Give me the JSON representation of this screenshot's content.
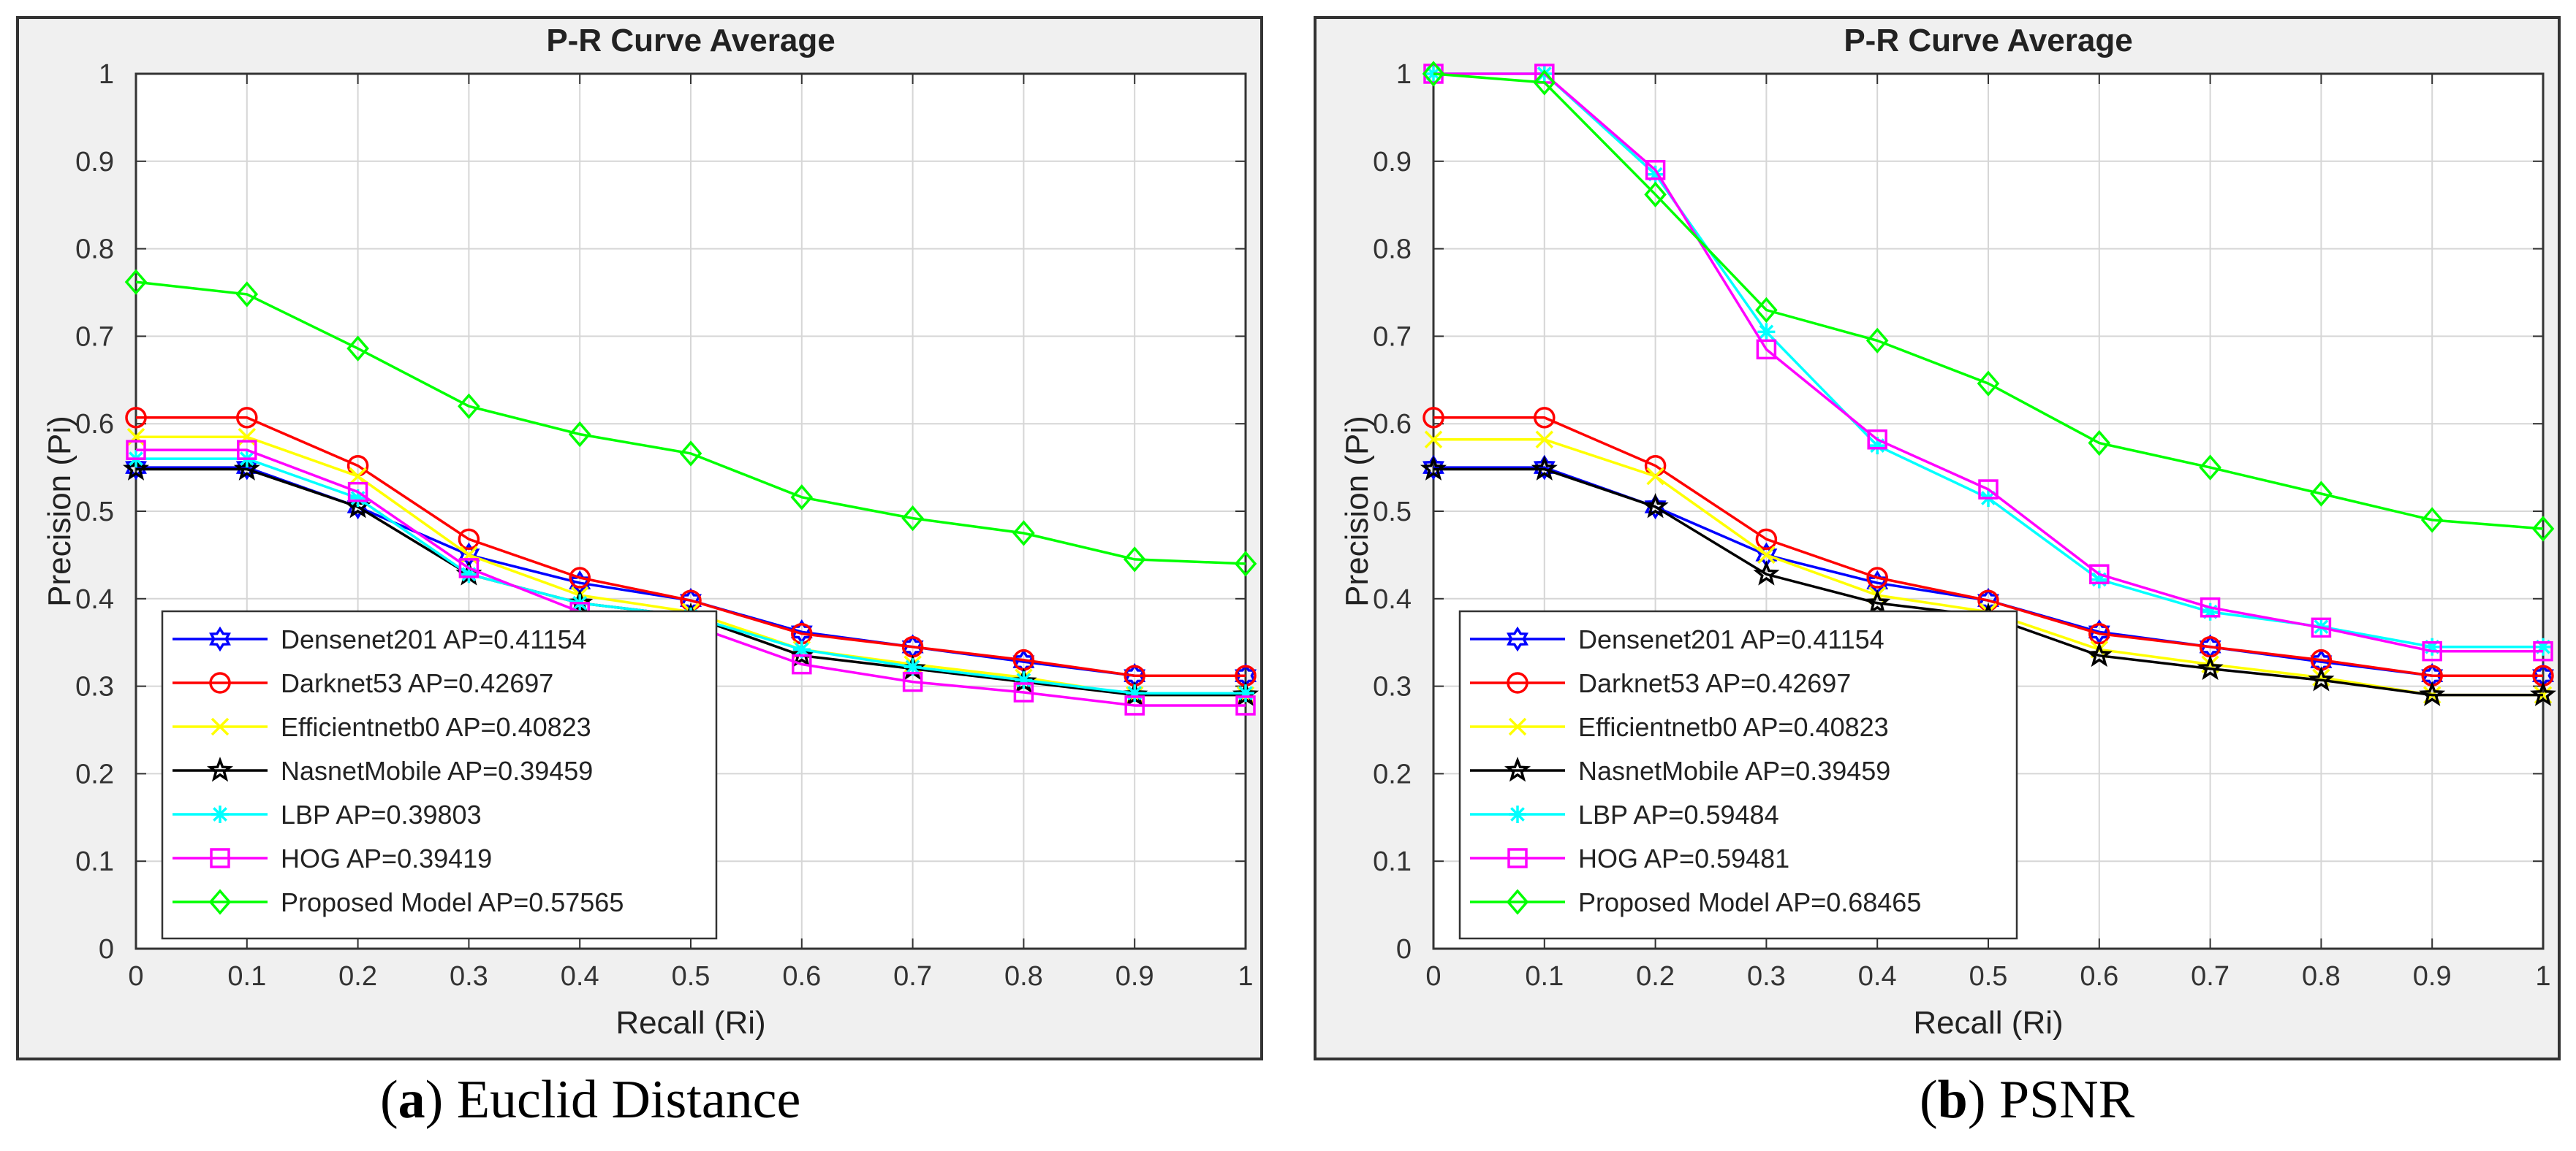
{
  "chart_data": [
    {
      "type": "line",
      "title": "P-R Curve Average",
      "xlabel": "Recall (Ri)",
      "ylabel": "Precision (Pi)",
      "xlim": [
        0,
        1
      ],
      "ylim": [
        0,
        1
      ],
      "xticks": [
        "0",
        "0.1",
        "0.2",
        "0.3",
        "0.4",
        "0.5",
        "0.6",
        "0.7",
        "0.8",
        "0.9",
        "1"
      ],
      "yticks": [
        "0",
        "0.1",
        "0.2",
        "0.3",
        "0.4",
        "0.5",
        "0.6",
        "0.7",
        "0.8",
        "0.9",
        "1"
      ],
      "grid": true,
      "legend_position": "bottom-left",
      "caption": {
        "label": "a",
        "text": "Euclid Distance"
      },
      "x": [
        0,
        0.1,
        0.2,
        0.3,
        0.4,
        0.5,
        0.6,
        0.7,
        0.8,
        0.9,
        1.0
      ],
      "series": [
        {
          "name": "Densenet201 AP=0.41154",
          "color": "#0000ff",
          "marker": "hexagram",
          "values": [
            0.55,
            0.55,
            0.505,
            0.45,
            0.418,
            0.398,
            0.362,
            0.345,
            0.328,
            0.312,
            0.312
          ]
        },
        {
          "name": "Darknet53 AP=0.42697",
          "color": "#ff0000",
          "marker": "circle",
          "values": [
            0.607,
            0.607,
            0.552,
            0.468,
            0.424,
            0.398,
            0.36,
            0.345,
            0.33,
            0.312,
            0.312
          ]
        },
        {
          "name": "Efficientnetb0 AP=0.40823",
          "color": "#ffff00",
          "marker": "x",
          "values": [
            0.585,
            0.585,
            0.54,
            0.45,
            0.404,
            0.385,
            0.342,
            0.325,
            0.31,
            0.29,
            0.29
          ]
        },
        {
          "name": "NasnetMobile AP=0.39459",
          "color": "#000000",
          "marker": "pentagram",
          "values": [
            0.548,
            0.548,
            0.505,
            0.428,
            0.395,
            0.38,
            0.335,
            0.32,
            0.305,
            0.29,
            0.29
          ]
        },
        {
          "name": "LBP AP=0.39803",
          "color": "#00ffff",
          "marker": "asterisk",
          "values": [
            0.56,
            0.56,
            0.515,
            0.428,
            0.395,
            0.38,
            0.342,
            0.322,
            0.307,
            0.292,
            0.292
          ]
        },
        {
          "name": "HOG AP=0.39419",
          "color": "#ff00ff",
          "marker": "square",
          "values": [
            0.57,
            0.57,
            0.522,
            0.435,
            0.385,
            0.37,
            0.325,
            0.305,
            0.293,
            0.278,
            0.278
          ]
        },
        {
          "name": "Proposed Model AP=0.57565",
          "color": "#00ff00",
          "marker": "diamond",
          "values": [
            0.762,
            0.748,
            0.686,
            0.62,
            0.588,
            0.566,
            0.516,
            0.492,
            0.475,
            0.445,
            0.44
          ]
        }
      ]
    },
    {
      "type": "line",
      "title": "P-R Curve Average",
      "xlabel": "Recall (Ri)",
      "ylabel": "Precision (Pi)",
      "xlim": [
        0,
        1
      ],
      "ylim": [
        0,
        1
      ],
      "xticks": [
        "0",
        "0.1",
        "0.2",
        "0.3",
        "0.4",
        "0.5",
        "0.6",
        "0.7",
        "0.8",
        "0.9",
        "1"
      ],
      "yticks": [
        "0",
        "0.1",
        "0.2",
        "0.3",
        "0.4",
        "0.5",
        "0.6",
        "0.7",
        "0.8",
        "0.9",
        "1"
      ],
      "grid": true,
      "legend_position": "bottom-left",
      "caption": {
        "label": "b",
        "text": "PSNR"
      },
      "x": [
        0,
        0.1,
        0.2,
        0.3,
        0.4,
        0.5,
        0.6,
        0.7,
        0.8,
        0.9,
        1.0
      ],
      "series": [
        {
          "name": "Densenet201 AP=0.41154",
          "color": "#0000ff",
          "marker": "hexagram",
          "values": [
            0.55,
            0.55,
            0.505,
            0.45,
            0.418,
            0.398,
            0.362,
            0.345,
            0.328,
            0.312,
            0.312
          ]
        },
        {
          "name": "Darknet53 AP=0.42697",
          "color": "#ff0000",
          "marker": "circle",
          "values": [
            0.607,
            0.607,
            0.552,
            0.468,
            0.424,
            0.398,
            0.36,
            0.345,
            0.33,
            0.312,
            0.312
          ]
        },
        {
          "name": "Efficientnetb0 AP=0.40823",
          "color": "#ffff00",
          "marker": "x",
          "values": [
            0.582,
            0.582,
            0.54,
            0.45,
            0.404,
            0.385,
            0.342,
            0.325,
            0.31,
            0.29,
            0.29
          ]
        },
        {
          "name": "NasnetMobile AP=0.39459",
          "color": "#000000",
          "marker": "pentagram",
          "values": [
            0.548,
            0.548,
            0.505,
            0.428,
            0.395,
            0.38,
            0.335,
            0.32,
            0.307,
            0.29,
            0.29
          ]
        },
        {
          "name": "LBP AP=0.59484",
          "color": "#00ffff",
          "marker": "asterisk",
          "values": [
            1.0,
            1.0,
            0.885,
            0.705,
            0.575,
            0.515,
            0.422,
            0.385,
            0.368,
            0.345,
            0.345
          ]
        },
        {
          "name": "HOG AP=0.59481",
          "color": "#ff00ff",
          "marker": "square",
          "values": [
            1.0,
            1.0,
            0.89,
            0.685,
            0.582,
            0.525,
            0.428,
            0.39,
            0.367,
            0.34,
            0.34
          ]
        },
        {
          "name": "Proposed Model AP=0.68465",
          "color": "#00ff00",
          "marker": "diamond",
          "values": [
            1.0,
            0.99,
            0.862,
            0.73,
            0.695,
            0.646,
            0.578,
            0.55,
            0.52,
            0.49,
            0.48
          ]
        }
      ]
    }
  ]
}
